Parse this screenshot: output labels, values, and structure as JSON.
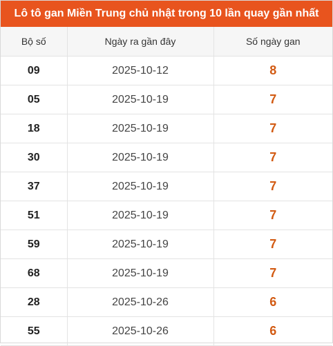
{
  "title": "Lô tô gan Miền Trung chủ nhật trong 10 lần quay gần nhất",
  "headers": {
    "number": "Bộ số",
    "last_date": "Ngày ra gần đây",
    "days": "Số ngày gan"
  },
  "rows": [
    {
      "number": "09",
      "last_date": "2025-10-12",
      "days": "8"
    },
    {
      "number": "05",
      "last_date": "2025-10-19",
      "days": "7"
    },
    {
      "number": "18",
      "last_date": "2025-10-19",
      "days": "7"
    },
    {
      "number": "30",
      "last_date": "2025-10-19",
      "days": "7"
    },
    {
      "number": "37",
      "last_date": "2025-10-19",
      "days": "7"
    },
    {
      "number": "51",
      "last_date": "2025-10-19",
      "days": "7"
    },
    {
      "number": "59",
      "last_date": "2025-10-19",
      "days": "7"
    },
    {
      "number": "68",
      "last_date": "2025-10-19",
      "days": "7"
    },
    {
      "number": "28",
      "last_date": "2025-10-26",
      "days": "6"
    },
    {
      "number": "55",
      "last_date": "2025-10-26",
      "days": "6"
    }
  ],
  "colors": {
    "title_bg": "#e8541e",
    "days_text": "#d25a12"
  }
}
